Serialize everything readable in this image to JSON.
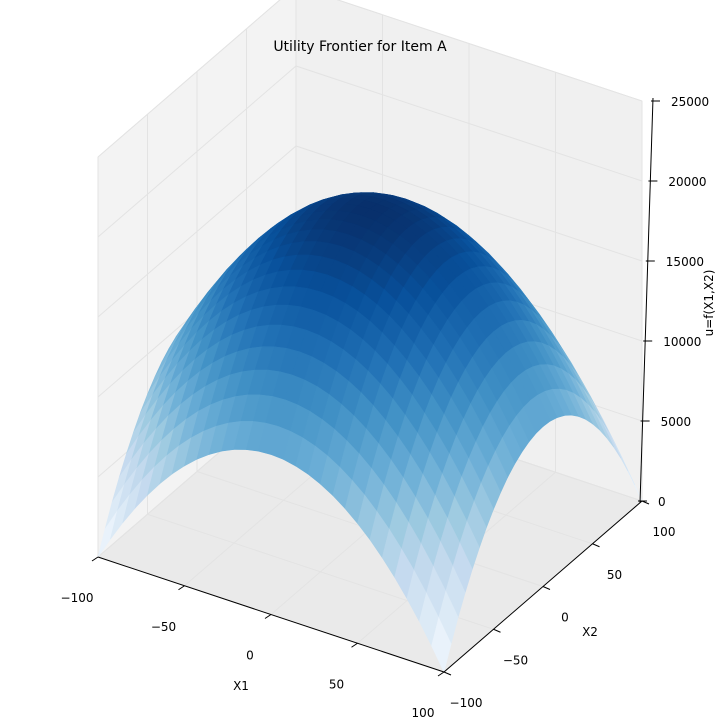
{
  "chart_data": {
    "type": "surface",
    "title": "Utility Frontier for Item A",
    "xlabel": "X1",
    "ylabel": "X2",
    "zlabel": "u=f(X1,X2)",
    "xlim": [
      -100,
      100
    ],
    "ylim": [
      -100,
      100
    ],
    "zlim": [
      0,
      25000
    ],
    "x_ticks": [
      -100,
      -50,
      0,
      50,
      100
    ],
    "y_ticks": [
      -100,
      -50,
      0,
      50,
      100
    ],
    "z_ticks": [
      0,
      5000,
      10000,
      15000,
      20000,
      25000
    ],
    "surface": {
      "function": "u = 20000 - X1^2 - X2^2",
      "peak": {
        "x1": 0,
        "x2": 0,
        "u": 20000
      },
      "corners": [
        {
          "x1": -100,
          "x2": -100,
          "u": 0
        },
        {
          "x1": 100,
          "x2": -100,
          "u": 0
        },
        {
          "x1": 100,
          "x2": 100,
          "u": 0
        },
        {
          "x1": -100,
          "x2": 100,
          "u": 0
        }
      ],
      "edge_midpoints": [
        {
          "x1": 0,
          "x2": -100,
          "u": 10000
        },
        {
          "x1": 100,
          "x2": 0,
          "u": 10000
        },
        {
          "x1": 0,
          "x2": 100,
          "u": 10000
        },
        {
          "x1": -100,
          "x2": 0,
          "u": 10000
        }
      ],
      "colormap": "Blues",
      "color_low": "#f7fbff",
      "color_high": "#08306b"
    },
    "grid": true
  }
}
